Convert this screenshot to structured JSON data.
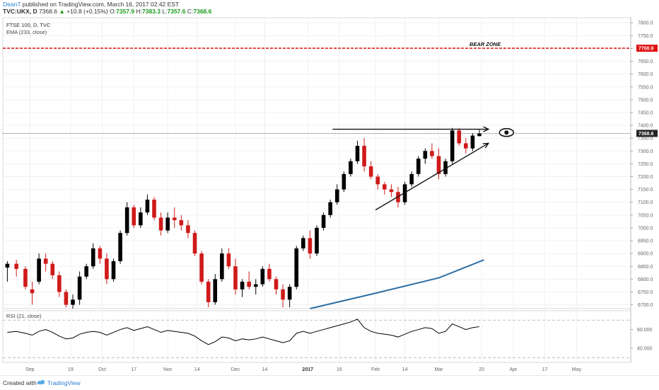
{
  "header": {
    "user": "DeanT",
    "published_text": " published on TradingView.com, March 16, 2017 02:42 EST",
    "symbol_line": "TVC:UKX, D",
    "last": "7368.6",
    "change": "+10.8 (+0.15%)",
    "open": "7357.9",
    "high": "7383.3",
    "low": "7357.6",
    "close": "7368.6",
    "labels": {
      "o": "O:",
      "h": "H:",
      "l": "L:",
      "c": "C:"
    }
  },
  "footer": {
    "created_with": "Created with",
    "brand": "TradingView"
  },
  "colors": {
    "up": "#000000",
    "down": "#d01a1a",
    "ema": "#2e6ea6",
    "bear_line": "#e01010",
    "grid": "#f0f0f0",
    "rsi": "#000000"
  },
  "chart_data": [
    {
      "type": "candlestick",
      "title": "FTSE 100, D, TVC",
      "indicator_label": "EMA (233, close)",
      "ylim": [
        6685,
        7820
      ],
      "y_ticks": [
        "7800.0",
        "7750.0",
        "7700.0",
        "7650.0",
        "7600.0",
        "7550.0",
        "7500.0",
        "7450.0",
        "7400.0",
        "7350.0",
        "7300.0",
        "7250.0",
        "7200.0",
        "7150.0",
        "7100.0",
        "7050.0",
        "7000.0",
        "6950.0",
        "6900.0",
        "6850.0",
        "6800.0",
        "6750.0",
        "6700.0"
      ],
      "x_ticks": [
        "Sep",
        "19",
        "Oct",
        "17",
        "Nov",
        "14",
        "Dec",
        "14",
        "2017",
        "16",
        "Feb",
        "14",
        "Mar",
        "20",
        "Apr",
        "17",
        "May"
      ],
      "bear_zone": {
        "label": "BEAR ZONE",
        "value": 7700.9,
        "price_label": "7700.9"
      },
      "last_price": {
        "value": 7368.6,
        "price_label": "7368.6"
      },
      "resistance_arrow": {
        "x1": "2017-01-13",
        "x2": "2017-03-23",
        "y": 7385
      },
      "support_arrow": {
        "x1": "2017-02-01",
        "y1": 7070,
        "x2": "2017-03-23",
        "y2": 7330
      },
      "ema_233": [
        {
          "x": "2017-01-03",
          "y": 6685
        },
        {
          "x": "2017-02-01",
          "y": 6745
        },
        {
          "x": "2017-03-01",
          "y": 6805
        },
        {
          "x": "2017-03-21",
          "y": 6875
        }
      ],
      "candles": [
        {
          "d": "2016-08-22",
          "o": 6845,
          "h": 6870,
          "l": 6790,
          "c": 6860
        },
        {
          "d": "2016-08-26",
          "o": 6860,
          "h": 6875,
          "l": 6810,
          "c": 6840
        },
        {
          "d": "2016-08-30",
          "o": 6840,
          "h": 6850,
          "l": 6760,
          "c": 6770
        },
        {
          "d": "2016-09-02",
          "o": 6760,
          "h": 6790,
          "l": 6700,
          "c": 6745
        },
        {
          "d": "2016-09-05",
          "o": 6790,
          "h": 6900,
          "l": 6780,
          "c": 6880
        },
        {
          "d": "2016-09-08",
          "o": 6880,
          "h": 6900,
          "l": 6830,
          "c": 6860
        },
        {
          "d": "2016-09-11",
          "o": 6860,
          "h": 6870,
          "l": 6800,
          "c": 6815
        },
        {
          "d": "2016-09-14",
          "o": 6815,
          "h": 6830,
          "l": 6730,
          "c": 6750
        },
        {
          "d": "2016-09-17",
          "o": 6750,
          "h": 6760,
          "l": 6690,
          "c": 6700
        },
        {
          "d": "2016-09-20",
          "o": 6700,
          "h": 6740,
          "l": 6685,
          "c": 6720
        },
        {
          "d": "2016-09-23",
          "o": 6720,
          "h": 6830,
          "l": 6700,
          "c": 6810
        },
        {
          "d": "2016-09-26",
          "o": 6810,
          "h": 6860,
          "l": 6800,
          "c": 6850
        },
        {
          "d": "2016-09-29",
          "o": 6850,
          "h": 6940,
          "l": 6840,
          "c": 6920
        },
        {
          "d": "2016-10-02",
          "o": 6920,
          "h": 6930,
          "l": 6860,
          "c": 6880
        },
        {
          "d": "2016-10-05",
          "o": 6880,
          "h": 6900,
          "l": 6780,
          "c": 6800
        },
        {
          "d": "2016-10-08",
          "o": 6800,
          "h": 6880,
          "l": 6790,
          "c": 6870
        },
        {
          "d": "2016-10-11",
          "o": 6870,
          "h": 6990,
          "l": 6860,
          "c": 6980
        },
        {
          "d": "2016-10-14",
          "o": 6980,
          "h": 7100,
          "l": 6970,
          "c": 7080
        },
        {
          "d": "2016-10-17",
          "o": 7080,
          "h": 7090,
          "l": 7000,
          "c": 7010
        },
        {
          "d": "2016-10-20",
          "o": 7010,
          "h": 7080,
          "l": 7000,
          "c": 7060
        },
        {
          "d": "2016-10-23",
          "o": 7060,
          "h": 7130,
          "l": 7050,
          "c": 7110
        },
        {
          "d": "2016-10-26",
          "o": 7110,
          "h": 7120,
          "l": 7030,
          "c": 7040
        },
        {
          "d": "2016-10-29",
          "o": 7040,
          "h": 7060,
          "l": 6970,
          "c": 6990
        },
        {
          "d": "2016-11-01",
          "o": 6990,
          "h": 7060,
          "l": 6980,
          "c": 7040
        },
        {
          "d": "2016-11-04",
          "o": 7040,
          "h": 7080,
          "l": 7000,
          "c": 7030
        },
        {
          "d": "2016-11-07",
          "o": 7030,
          "h": 7050,
          "l": 6990,
          "c": 7010
        },
        {
          "d": "2016-11-10",
          "o": 7010,
          "h": 7030,
          "l": 6960,
          "c": 6980
        },
        {
          "d": "2016-11-13",
          "o": 6980,
          "h": 6990,
          "l": 6890,
          "c": 6900
        },
        {
          "d": "2016-11-16",
          "o": 6900,
          "h": 6910,
          "l": 6780,
          "c": 6790
        },
        {
          "d": "2016-11-19",
          "o": 6790,
          "h": 6800,
          "l": 6690,
          "c": 6710
        },
        {
          "d": "2016-11-22",
          "o": 6710,
          "h": 6820,
          "l": 6700,
          "c": 6800
        },
        {
          "d": "2016-11-25",
          "o": 6800,
          "h": 6920,
          "l": 6790,
          "c": 6900
        },
        {
          "d": "2016-11-28",
          "o": 6900,
          "h": 6920,
          "l": 6840,
          "c": 6850
        },
        {
          "d": "2016-12-01",
          "o": 6850,
          "h": 6880,
          "l": 6740,
          "c": 6760
        },
        {
          "d": "2016-12-04",
          "o": 6760,
          "h": 6800,
          "l": 6730,
          "c": 6790
        },
        {
          "d": "2016-12-07",
          "o": 6790,
          "h": 6830,
          "l": 6760,
          "c": 6770
        },
        {
          "d": "2016-12-10",
          "o": 6770,
          "h": 6800,
          "l": 6740,
          "c": 6780
        },
        {
          "d": "2016-12-13",
          "o": 6780,
          "h": 6850,
          "l": 6770,
          "c": 6840
        },
        {
          "d": "2016-12-16",
          "o": 6840,
          "h": 6860,
          "l": 6790,
          "c": 6800
        },
        {
          "d": "2016-12-19",
          "o": 6800,
          "h": 6810,
          "l": 6740,
          "c": 6760
        },
        {
          "d": "2016-12-22",
          "o": 6760,
          "h": 6780,
          "l": 6690,
          "c": 6720
        },
        {
          "d": "2016-12-25",
          "o": 6720,
          "h": 6780,
          "l": 6690,
          "c": 6770
        },
        {
          "d": "2016-12-28",
          "o": 6770,
          "h": 6930,
          "l": 6760,
          "c": 6920
        },
        {
          "d": "2016-12-31",
          "o": 6920,
          "h": 6970,
          "l": 6910,
          "c": 6960
        },
        {
          "d": "2017-01-03",
          "o": 6960,
          "h": 6990,
          "l": 6880,
          "c": 6900
        },
        {
          "d": "2017-01-06",
          "o": 6900,
          "h": 7010,
          "l": 6890,
          "c": 7000
        },
        {
          "d": "2017-01-09",
          "o": 7000,
          "h": 7060,
          "l": 6990,
          "c": 7050
        },
        {
          "d": "2017-01-12",
          "o": 7050,
          "h": 7110,
          "l": 7040,
          "c": 7100
        },
        {
          "d": "2017-01-15",
          "o": 7100,
          "h": 7170,
          "l": 7090,
          "c": 7150
        },
        {
          "d": "2017-01-18",
          "o": 7150,
          "h": 7220,
          "l": 7140,
          "c": 7210
        },
        {
          "d": "2017-01-21",
          "o": 7210,
          "h": 7270,
          "l": 7200,
          "c": 7260
        },
        {
          "d": "2017-01-24",
          "o": 7260,
          "h": 7340,
          "l": 7250,
          "c": 7320
        },
        {
          "d": "2017-01-27",
          "o": 7320,
          "h": 7350,
          "l": 7220,
          "c": 7240
        },
        {
          "d": "2017-01-30",
          "o": 7240,
          "h": 7260,
          "l": 7190,
          "c": 7200
        },
        {
          "d": "2017-02-02",
          "o": 7200,
          "h": 7210,
          "l": 7150,
          "c": 7170
        },
        {
          "d": "2017-02-05",
          "o": 7170,
          "h": 7180,
          "l": 7130,
          "c": 7150
        },
        {
          "d": "2017-02-08",
          "o": 7150,
          "h": 7170,
          "l": 7120,
          "c": 7140
        },
        {
          "d": "2017-02-11",
          "o": 7140,
          "h": 7160,
          "l": 7080,
          "c": 7100
        },
        {
          "d": "2017-02-14",
          "o": 7100,
          "h": 7180,
          "l": 7090,
          "c": 7170
        },
        {
          "d": "2017-02-17",
          "o": 7170,
          "h": 7220,
          "l": 7160,
          "c": 7210
        },
        {
          "d": "2017-02-20",
          "o": 7210,
          "h": 7280,
          "l": 7200,
          "c": 7270
        },
        {
          "d": "2017-02-23",
          "o": 7270,
          "h": 7310,
          "l": 7250,
          "c": 7300
        },
        {
          "d": "2017-02-26",
          "o": 7300,
          "h": 7330,
          "l": 7270,
          "c": 7280
        },
        {
          "d": "2017-03-01",
          "o": 7280,
          "h": 7310,
          "l": 7190,
          "c": 7210
        },
        {
          "d": "2017-03-04",
          "o": 7210,
          "h": 7270,
          "l": 7200,
          "c": 7260
        },
        {
          "d": "2017-03-07",
          "o": 7260,
          "h": 7390,
          "l": 7250,
          "c": 7380
        },
        {
          "d": "2017-03-10",
          "o": 7380,
          "h": 7390,
          "l": 7320,
          "c": 7330
        },
        {
          "d": "2017-03-13",
          "o": 7330,
          "h": 7350,
          "l": 7290,
          "c": 7310
        },
        {
          "d": "2017-03-16",
          "o": 7310,
          "h": 7370,
          "l": 7300,
          "c": 7360
        },
        {
          "d": "2017-03-19",
          "o": 7358,
          "h": 7383,
          "l": 7357,
          "c": 7368
        }
      ]
    },
    {
      "type": "line",
      "title": "RSI (21, close)",
      "ylim": [
        25,
        80
      ],
      "y_ticks": [
        "60.000",
        "40.000"
      ],
      "levels": [
        70,
        30
      ],
      "x": [
        "2016-08-22",
        "2016-08-26",
        "2016-08-30",
        "2016-09-02",
        "2016-09-05",
        "2016-09-08",
        "2016-09-11",
        "2016-09-14",
        "2016-09-17",
        "2016-09-20",
        "2016-09-23",
        "2016-09-26",
        "2016-09-29",
        "2016-10-02",
        "2016-10-05",
        "2016-10-08",
        "2016-10-11",
        "2016-10-14",
        "2016-10-17",
        "2016-10-20",
        "2016-10-23",
        "2016-10-26",
        "2016-10-29",
        "2016-11-01",
        "2016-11-04",
        "2016-11-07",
        "2016-11-10",
        "2016-11-13",
        "2016-11-16",
        "2016-11-19",
        "2016-11-22",
        "2016-11-25",
        "2016-11-28",
        "2016-12-01",
        "2016-12-04",
        "2016-12-07",
        "2016-12-10",
        "2016-12-13",
        "2016-12-16",
        "2016-12-19",
        "2016-12-22",
        "2016-12-25",
        "2016-12-28",
        "2016-12-31",
        "2017-01-03",
        "2017-01-06",
        "2017-01-09",
        "2017-01-12",
        "2017-01-15",
        "2017-01-18",
        "2017-01-21",
        "2017-01-24",
        "2017-01-27",
        "2017-01-30",
        "2017-02-02",
        "2017-02-05",
        "2017-02-08",
        "2017-02-11",
        "2017-02-14",
        "2017-02-17",
        "2017-02-20",
        "2017-02-23",
        "2017-02-26",
        "2017-03-01",
        "2017-03-04",
        "2017-03-07",
        "2017-03-10",
        "2017-03-13",
        "2017-03-16",
        "2017-03-19"
      ],
      "values": [
        57,
        58,
        56,
        54,
        58,
        60,
        57,
        53,
        50,
        51,
        55,
        57,
        58,
        57,
        54,
        57,
        60,
        62,
        59,
        61,
        63,
        60,
        57,
        59,
        58,
        57,
        56,
        53,
        48,
        44,
        47,
        52,
        51,
        48,
        50,
        49,
        50,
        52,
        50,
        48,
        46,
        48,
        56,
        58,
        56,
        58,
        60,
        62,
        64,
        66,
        68,
        71,
        62,
        58,
        56,
        55,
        54,
        52,
        55,
        58,
        60,
        62,
        61,
        56,
        58,
        66,
        63,
        60,
        62,
        63
      ]
    }
  ]
}
